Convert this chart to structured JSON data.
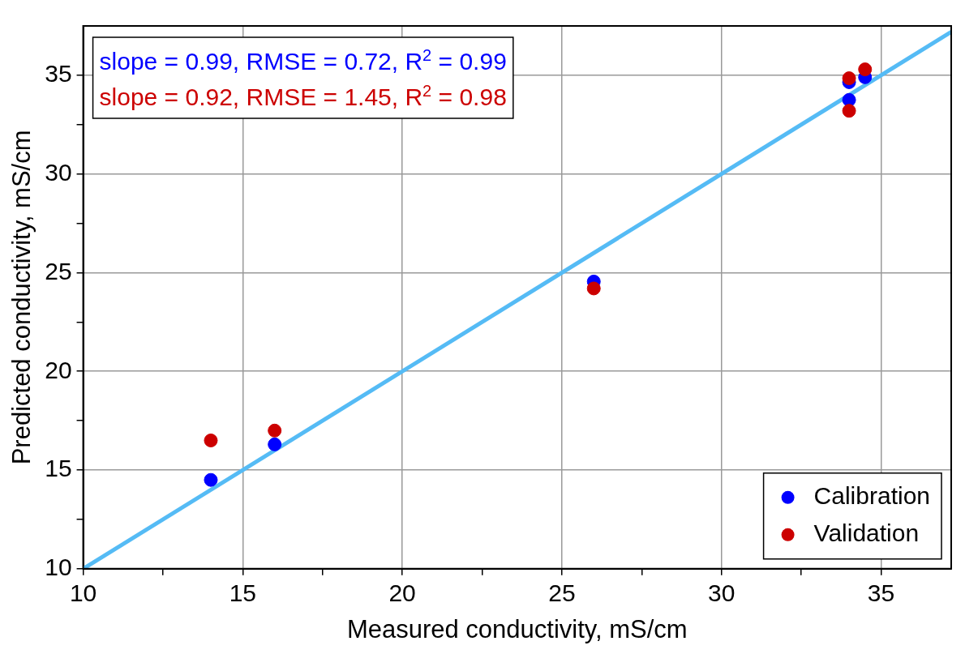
{
  "chart_data": {
    "type": "scatter",
    "xlabel": "Measured conductivity, mS/cm",
    "ylabel": "Predicted conductivity, mS/cm",
    "annotations": [
      "slope = 0.99, RMSE = 0.72, R$^{2}$ = 0.99",
      "slope = 0.92, RMSE = 1.45, R$^{2}$ = 0.98"
    ],
    "series": [
      {
        "name": "Calibration",
        "color": "#0000ff",
        "x": [
          14,
          16,
          26,
          34,
          34,
          34.5
        ],
        "values": [
          14.5,
          16.3,
          24.55,
          33.75,
          34.65,
          34.9
        ]
      },
      {
        "name": "Validation",
        "color": "#cc0000",
        "x": [
          14,
          16,
          26,
          34,
          34,
          34.5
        ],
        "values": [
          16.5,
          17,
          24.2,
          33.2,
          34.85,
          35.3
        ]
      },
      {
        "type": "line",
        "color": "#55bbf5",
        "x": [
          10,
          37.2
        ],
        "values": [
          10,
          37.2
        ],
        "marker": "none"
      }
    ],
    "xlim": [
      10,
      37.2
    ],
    "ylim": [
      10,
      37.5
    ],
    "xticks": [
      10,
      {
        "value": 12.5,
        "label": null
      },
      15,
      {
        "value": 17.5,
        "label": null
      },
      20,
      {
        "value": 22.5,
        "label": null
      },
      25,
      {
        "value": 27.5,
        "label": null
      },
      30,
      {
        "value": 32.5,
        "label": null
      },
      35
    ],
    "yticks": [
      10,
      {
        "value": 12.5,
        "label": null
      },
      15,
      {
        "value": 17.5,
        "label": null
      },
      20,
      {
        "value": 22.5,
        "label": null
      },
      25,
      {
        "value": 27.5,
        "label": null
      },
      30,
      {
        "value": 32.5,
        "label": null
      },
      35
    ],
    "grid": true,
    "legend": "bottom right",
    "marker": "circle"
  }
}
